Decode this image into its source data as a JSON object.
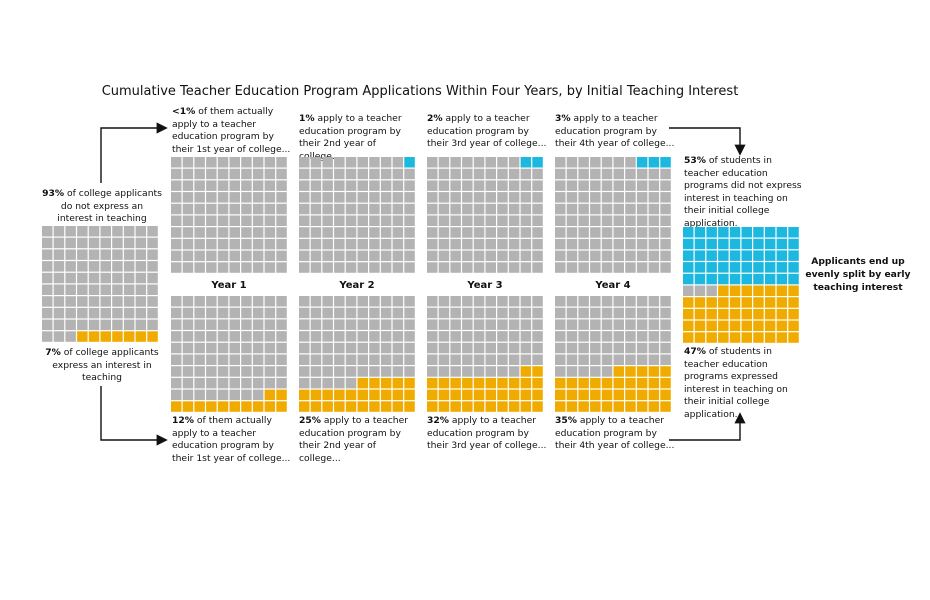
{
  "title": "Cumulative Teacher Education Program Applications Within Four Years, by Initial Teaching Interest",
  "colors": {
    "empty": "#b3b3b3",
    "interest": "#f0ab00",
    "no_interest": "#1cb8e0"
  },
  "initial": {
    "no_interest": {
      "pct": "93%",
      "text": " of college applicants do not express an interest in teaching"
    },
    "interest": {
      "pct": "7%",
      "text": " of college applicants express an interest in teaching"
    }
  },
  "years": [
    "Year 1",
    "Year 2",
    "Year 3",
    "Year 4"
  ],
  "top_notes": [
    {
      "pct": "<1%",
      "text": " of them actually apply to a teacher education program by their 1st year of college..."
    },
    {
      "pct": "1%",
      "text": " apply to a teacher education program by their 2nd year of college..."
    },
    {
      "pct": "2%",
      "text": " apply to a teacher education program by their 3rd year of college..."
    },
    {
      "pct": "3%",
      "text": " apply to a teacher education program by their 4th year of college..."
    }
  ],
  "bottom_notes": [
    {
      "pct": "12%",
      "text": " of them actually apply to a teacher education program by their 1st year of college..."
    },
    {
      "pct": "25%",
      "text": " apply to a teacher education program by their 2nd year of college..."
    },
    {
      "pct": "32%",
      "text": " apply to a teacher education program by their 3rd year of college..."
    },
    {
      "pct": "35%",
      "text": " apply to a teacher education program by their 4th year of college..."
    }
  ],
  "final": {
    "top": {
      "pct": "53%",
      "text": " of students in teacher education programs did not express interest in teaching on their initial college application."
    },
    "bottom": {
      "pct": "47%",
      "text": " of students in teacher education programs expressed interest in teaching on their initial college application."
    },
    "conclusion": "Applicants end up evenly split by early teaching interest"
  },
  "chart_data": {
    "type": "waffle",
    "title": "Cumulative Teacher Education Program Applications Within Four Years, by Initial Teaching Interest",
    "initial_interest_split": {
      "no_interest_pct": 93,
      "interest_pct": 7
    },
    "series": [
      {
        "name": "No initial teaching interest",
        "categories": [
          "Year 1",
          "Year 2",
          "Year 3",
          "Year 4"
        ],
        "values": [
          0,
          1,
          2,
          3
        ]
      },
      {
        "name": "Initial teaching interest",
        "categories": [
          "Year 1",
          "Year 2",
          "Year 3",
          "Year 4"
        ],
        "values": [
          12,
          25,
          32,
          35
        ]
      }
    ],
    "final_composition": {
      "no_interest_pct": 53,
      "interest_pct": 47
    }
  }
}
